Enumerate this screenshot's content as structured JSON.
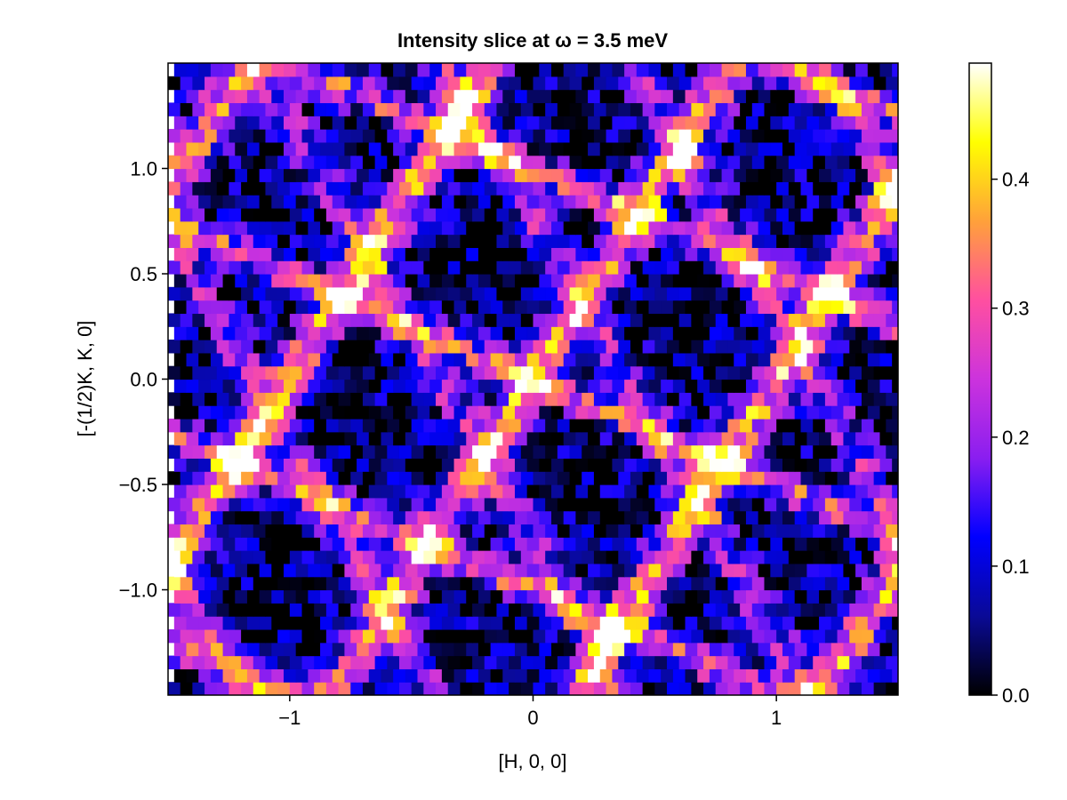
{
  "chart_data": {
    "type": "heatmap",
    "title": "Intensity slice at ω = 3.5 meV",
    "xlabel": "[H, 0, 0]",
    "ylabel": "[-(1/2)K, K, 0]",
    "xlim": [
      -1.5,
      1.5
    ],
    "ylim": [
      -1.5,
      1.5
    ],
    "x_ticks": [
      -1,
      0,
      1
    ],
    "x_tick_labels": [
      "−1",
      "0",
      "1"
    ],
    "y_ticks": [
      -1.0,
      -0.5,
      0.0,
      0.5,
      1.0
    ],
    "y_tick_labels": [
      "−1.0",
      "−0.5",
      "0.0",
      "0.5",
      "1.0"
    ],
    "colorbar": {
      "range": [
        0.0,
        0.49
      ],
      "ticks": [
        0.0,
        0.1,
        0.2,
        0.3,
        0.4
      ],
      "tick_labels": [
        "0.0",
        "0.1",
        "0.2",
        "0.3",
        "0.4"
      ],
      "colormap": "plasma-like (black-blue-purple-magenta-orange-yellow-white)",
      "colors": [
        "#000000",
        "#0a0a96",
        "#0000ff",
        "#8a1ef0",
        "#cc33dd",
        "#ff4fa0",
        "#ffa13a",
        "#ffff00",
        "#ffffff"
      ]
    },
    "grid": false,
    "pattern_note": "Bright bands run along diagonal ridges through (0,0); high intensity (≥0.4) near (0,±1.2), (±0.5,±0.3), (±0.9,±0.6)"
  }
}
